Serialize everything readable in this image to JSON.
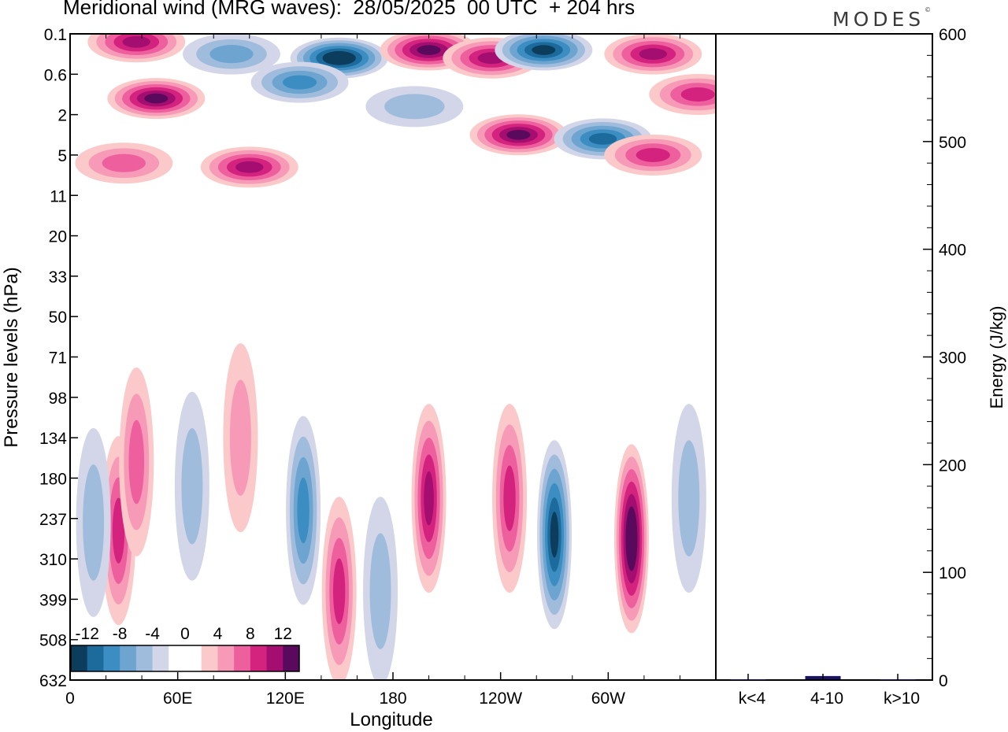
{
  "title": "Meridional wind (MRG waves):  28/05/2025  00 UTC  + 204 hrs",
  "logo": "MODES",
  "logo_mark": "©",
  "chart_data": [
    {
      "type": "heatmap",
      "title": "Meridional wind (MRG waves):  28/05/2025  00 UTC  + 204 hrs",
      "xlabel": "Longitude",
      "ylabel": "Pressure levels (hPa)",
      "x_ticks": [
        "0",
        "60E",
        "120E",
        "180",
        "120W",
        "60W"
      ],
      "x_tick_values": [
        0,
        60,
        120,
        180,
        240,
        300
      ],
      "xlim": [
        0,
        360
      ],
      "y_ticks": [
        "0.1",
        "0.6",
        "2",
        "5",
        "11",
        "20",
        "33",
        "50",
        "71",
        "98",
        "134",
        "180",
        "237",
        "310",
        "399",
        "508",
        "632"
      ],
      "colorbar": {
        "labels": [
          "-12",
          "-8",
          "-4",
          "0",
          "4",
          "8",
          "12"
        ],
        "levels": [
          -14,
          -12,
          -10,
          -8,
          -6,
          -4,
          -2,
          0,
          2,
          4,
          6,
          8,
          10,
          12,
          14
        ],
        "colors": [
          "#0d3d5c",
          "#1c6b9c",
          "#3c8dc2",
          "#6da5d0",
          "#a0bcdc",
          "#d3d6e8",
          "#ffffff",
          "#ffffff",
          "#fbc9c9",
          "#f79ab8",
          "#ee5f9e",
          "#d4237f",
          "#a30e70",
          "#5a0a5c"
        ]
      },
      "features": [
        {
          "lon": 37,
          "level_index": 0.2,
          "value": 11
        },
        {
          "lon": 48,
          "level_index": 1.6,
          "value": 12
        },
        {
          "lon": 100,
          "level_index": 3.3,
          "value": 10
        },
        {
          "lon": 30,
          "level_index": 3.2,
          "value": 7
        },
        {
          "lon": 90,
          "level_index": 0.5,
          "value": -6
        },
        {
          "lon": 150,
          "level_index": 0.6,
          "value": -14
        },
        {
          "lon": 128,
          "level_index": 1.2,
          "value": -9
        },
        {
          "lon": 200,
          "level_index": 0.4,
          "value": 13
        },
        {
          "lon": 235,
          "level_index": 0.6,
          "value": 10
        },
        {
          "lon": 264,
          "level_index": 0.4,
          "value": -13
        },
        {
          "lon": 192,
          "level_index": 1.8,
          "value": -5
        },
        {
          "lon": 250,
          "level_index": 2.5,
          "value": 12
        },
        {
          "lon": 297,
          "level_index": 2.6,
          "value": -11
        },
        {
          "lon": 325,
          "level_index": 0.5,
          "value": 10
        },
        {
          "lon": 350,
          "level_index": 1.5,
          "value": 9
        },
        {
          "lon": 325,
          "level_index": 3.0,
          "value": 9
        },
        {
          "lon": 27,
          "level_index": 12.3,
          "value": 9
        },
        {
          "lon": 13,
          "level_index": 12.1,
          "value": -5
        },
        {
          "lon": 37,
          "level_index": 10.6,
          "value": 6
        },
        {
          "lon": 68,
          "level_index": 11.2,
          "value": -5
        },
        {
          "lon": 95,
          "level_index": 10,
          "value": 5
        },
        {
          "lon": 130,
          "level_index": 11.8,
          "value": -9
        },
        {
          "lon": 150,
          "level_index": 13.8,
          "value": 9
        },
        {
          "lon": 173,
          "level_index": 13.8,
          "value": -4
        },
        {
          "lon": 200,
          "level_index": 11.5,
          "value": 11
        },
        {
          "lon": 245,
          "level_index": 11.5,
          "value": 8
        },
        {
          "lon": 270,
          "level_index": 12.4,
          "value": -13
        },
        {
          "lon": 313,
          "level_index": 12.5,
          "value": 14
        },
        {
          "lon": 345,
          "level_index": 11.5,
          "value": -5
        }
      ]
    },
    {
      "type": "bar",
      "ylabel": "Energy (J/kg)",
      "categories": [
        "k<4",
        "4-10",
        "k>10"
      ],
      "values": [
        0,
        3,
        0
      ],
      "ylim": [
        0,
        600
      ],
      "y_ticks": [
        "0",
        "100",
        "200",
        "300",
        "400",
        "500",
        "600"
      ],
      "bar_color": "#1b1464"
    }
  ]
}
